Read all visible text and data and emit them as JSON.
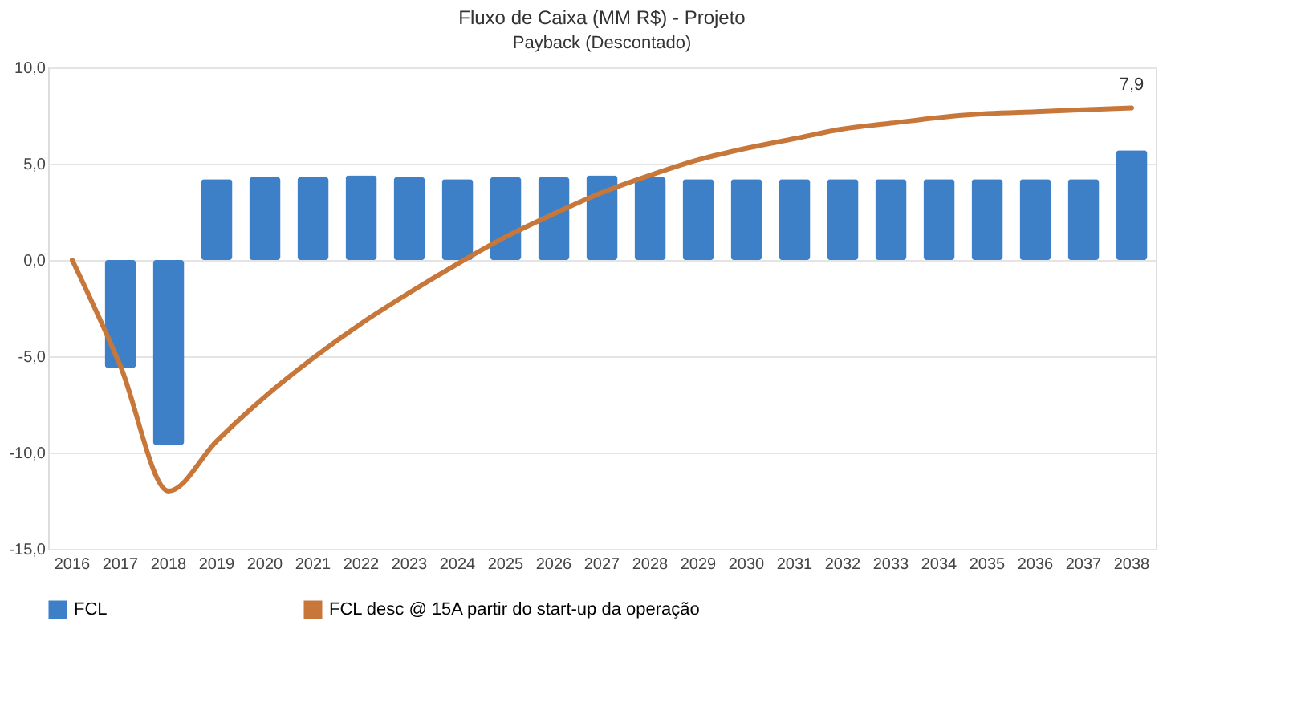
{
  "chart_data": {
    "type": "bar",
    "title": "Fluxo de Caixa (MM R$) - Projeto",
    "categories": [
      "2016",
      "2017",
      "2018",
      "2019",
      "2020",
      "2021",
      "2022",
      "2023",
      "2024",
      "2025",
      "2026",
      "2027",
      "2028",
      "2029",
      "2030",
      "2031",
      "2032",
      "2033",
      "2034",
      "2035",
      "2036",
      "2037",
      "2038"
    ],
    "series": [
      {
        "name": "FCL",
        "color": "#3d80c8",
        "values": [
          0,
          -5.6,
          -9.6,
          4.2,
          4.3,
          4.3,
          4.4,
          4.3,
          4.2,
          4.3,
          4.3,
          4.4,
          4.3,
          4.2,
          4.2,
          4.2,
          4.2,
          4.2,
          4.2,
          4.2,
          4.2,
          4.2,
          5.7
        ]
      },
      {
        "name": "FCL desc @ 15A partir do start-up da operação",
        "type": "line",
        "color": "#c8773a",
        "values": [
          0,
          -5.5,
          -12.0,
          -9.4,
          -7.1,
          -5.1,
          -3.3,
          -1.7,
          -0.2,
          1.2,
          2.4,
          3.5,
          4.4,
          5.2,
          5.8,
          6.3,
          6.8,
          7.1,
          7.4,
          7.6,
          7.7,
          7.8,
          7.9
        ]
      }
    ],
    "ylim": [
      -15,
      10
    ],
    "yticks": [
      {
        "value": -15,
        "label": "-15,0"
      },
      {
        "value": -10,
        "label": "-10,0"
      },
      {
        "value": -5,
        "label": "-5,0"
      },
      {
        "value": 0,
        "label": "0,0"
      },
      {
        "value": 5,
        "label": "5,0"
      },
      {
        "value": 10,
        "label": "10,0"
      }
    ],
    "grid": "y",
    "legend": "bottom",
    "annotations": [
      "Payback (Descontado)",
      {
        "text": "7,9",
        "x": "2038",
        "y": 7.9
      }
    ]
  }
}
